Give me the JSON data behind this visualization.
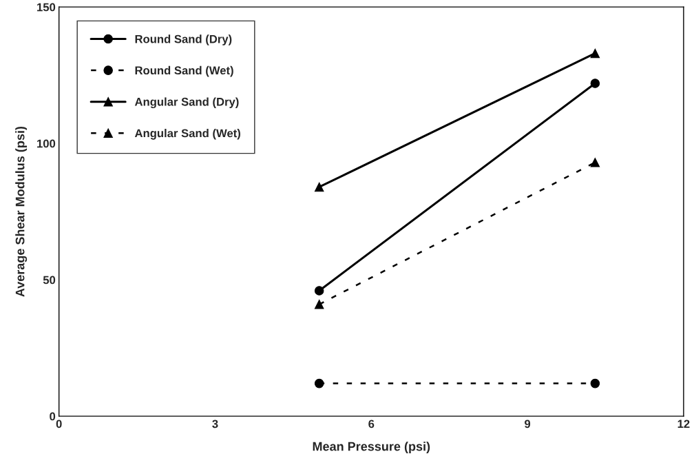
{
  "chart_data": {
    "type": "line",
    "xlabel": "Mean Pressure (psi)",
    "ylabel": "Average Shear Modulus (psi)",
    "x": [
      5,
      10.3
    ],
    "series": [
      {
        "name": "Round Sand (Dry)",
        "color": "#000000",
        "values": [
          46,
          122
        ],
        "marker": "circle",
        "line_style": "solid"
      },
      {
        "name": "Round Sand (Wet)",
        "color": "#000000",
        "values": [
          12,
          12
        ],
        "marker": "circle",
        "line_style": "dashed"
      },
      {
        "name": "Angular Sand (Dry)",
        "color": "#000000",
        "values": [
          84,
          133
        ],
        "marker": "triangle",
        "line_style": "solid"
      },
      {
        "name": "Angular Sand (Wet)",
        "color": "#000000",
        "values": [
          41,
          93
        ],
        "marker": "triangle",
        "line_style": "dashed"
      }
    ],
    "xlim": [
      0,
      12
    ],
    "xticks": [
      0,
      3,
      6,
      9,
      12
    ],
    "ylim": [
      0,
      150
    ],
    "yticks": [
      0,
      50,
      100,
      150
    ],
    "grid": false,
    "legend": "top left"
  }
}
